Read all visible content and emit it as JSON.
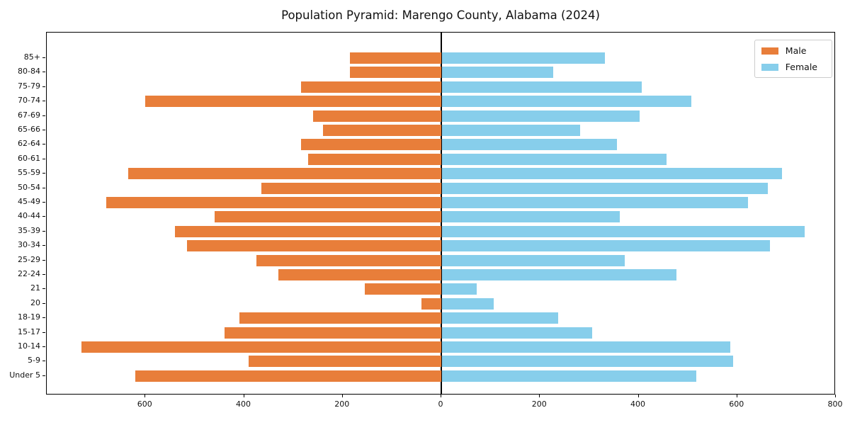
{
  "title": "Population Pyramid: Marengo County, Alabama (2024)",
  "legend": {
    "male_label": "Male",
    "female_label": "Female",
    "position": "upper right"
  },
  "colors": {
    "male": "#e87e3a",
    "female": "#87ceeb",
    "axis": "#000000",
    "background": "#ffffff",
    "legend_border": "#cccccc"
  },
  "chart_data": {
    "type": "bar",
    "subtype": "population-pyramid",
    "orientation": "horizontal",
    "title": "Population Pyramid: Marengo County, Alabama (2024)",
    "xlabel": "",
    "ylabel": "",
    "grid": false,
    "legend_position": "upper right",
    "xlim": [
      -800,
      800
    ],
    "xticks": [
      -600,
      -400,
      -200,
      0,
      200,
      400,
      600,
      800
    ],
    "xtick_labels": [
      "600",
      "400",
      "200",
      "0",
      "200",
      "400",
      "600",
      "800"
    ],
    "categories": [
      "85+",
      "80-84",
      "75-79",
      "70-74",
      "67-69",
      "65-66",
      "62-64",
      "60-61",
      "55-59",
      "50-54",
      "45-49",
      "40-44",
      "35-39",
      "30-34",
      "25-29",
      "22-24",
      "21",
      "20",
      "18-19",
      "15-17",
      "10-14",
      "5-9",
      "Under 5"
    ],
    "series": [
      {
        "name": "Male",
        "side": "left",
        "color": "#e87e3a",
        "values": [
          185,
          185,
          285,
          600,
          260,
          240,
          285,
          270,
          635,
          365,
          680,
          460,
          540,
          515,
          375,
          330,
          155,
          40,
          410,
          440,
          730,
          390,
          620
        ]
      },
      {
        "name": "Female",
        "side": "right",
        "color": "#87ceeb",
        "values": [
          330,
          225,
          405,
          505,
          400,
          280,
          355,
          455,
          690,
          660,
          620,
          360,
          735,
          665,
          370,
          475,
          70,
          105,
          235,
          305,
          585,
          590,
          515
        ]
      }
    ]
  }
}
